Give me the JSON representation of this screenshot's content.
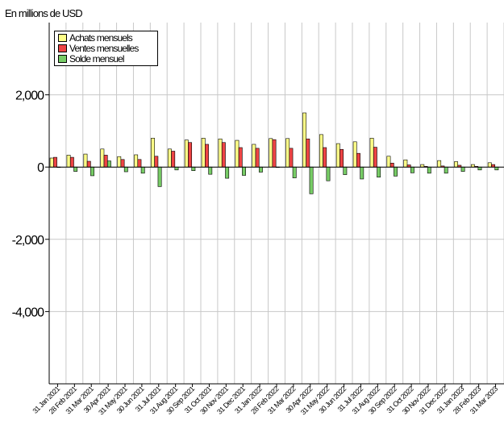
{
  "unit_label": "En millions de USD",
  "colors": {
    "achats": "#ffff88",
    "ventes": "#ee4444",
    "solde": "#77cc66",
    "grid": "#c8c8c8",
    "axis": "#000000"
  },
  "chart_data": {
    "type": "bar",
    "title": "",
    "xlabel": "",
    "ylabel": "",
    "ylim": [
      -6000,
      4000
    ],
    "yticks": [
      2000,
      0,
      -2000,
      -4000
    ],
    "ytick_labels": [
      "2,000",
      "0",
      "-2,000",
      "-4,000"
    ],
    "grid": true,
    "legend": "top-left",
    "categories": [
      "31 Jan 2021",
      "28 Feb 2021",
      "31 Mar 2021",
      "30 Apr 2021",
      "31 May 2021",
      "30 Jun 2021",
      "31 Jul 2021",
      "31 Aug 2021",
      "30 Sep 2021",
      "31 Oct 2021",
      "30 Nov 2021",
      "31 Dec 2021",
      "31 Jan 2022",
      "28 Feb 2022",
      "31 Mar 2022",
      "30 Apr 2022",
      "31 May 2022",
      "30 Jun 2022",
      "31 Jul 2022",
      "31 Aug 2022",
      "30 Sep 2022",
      "31 Oct 2022",
      "30 Nov 2022",
      "31 Dec 2022",
      "31 Jan 2023",
      "28 Feb 2023",
      "31 Mar 2023"
    ],
    "series": [
      {
        "name": "Achats mensuels",
        "values": [
          250,
          330,
          360,
          500,
          290,
          340,
          800,
          500,
          750,
          800,
          780,
          740,
          630,
          790,
          790,
          1500,
          900,
          650,
          700,
          800,
          300,
          200,
          70,
          180,
          150,
          70,
          120
        ]
      },
      {
        "name": "Ventes mensuelles",
        "values": [
          270,
          270,
          160,
          330,
          210,
          210,
          300,
          440,
          680,
          630,
          680,
          540,
          520,
          760,
          520,
          780,
          540,
          490,
          380,
          550,
          110,
          60,
          20,
          30,
          50,
          20,
          70
        ]
      },
      {
        "name": "Solde mensuel",
        "values": [
          0,
          -120,
          -240,
          170,
          -130,
          -170,
          -540,
          -80,
          -100,
          -200,
          -310,
          -230,
          -140,
          0,
          -300,
          -740,
          -380,
          -210,
          -330,
          -280,
          -250,
          -160,
          -170,
          -170,
          -120,
          -80,
          -80
        ]
      }
    ]
  }
}
